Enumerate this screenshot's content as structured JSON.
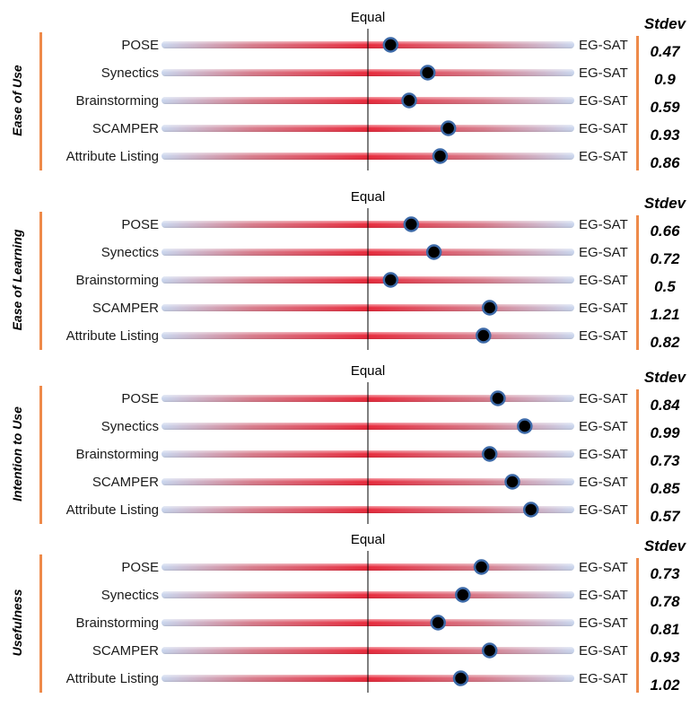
{
  "chart_data": {
    "type": "scatter",
    "scale_note": "position 0 = Equal line, 1 = EG-SAT end",
    "center_label": "Equal",
    "right_label": "EG-SAT",
    "stdev_header": "Stdev",
    "panels": [
      {
        "title": "Ease of Use",
        "rows": [
          {
            "label": "POSE",
            "value": 0.11,
            "stdev": "0.47"
          },
          {
            "label": "Synectics",
            "value": 0.29,
            "stdev": "0.9"
          },
          {
            "label": "Brainstorming",
            "value": 0.2,
            "stdev": "0.59"
          },
          {
            "label": "SCAMPER",
            "value": 0.39,
            "stdev": "0.93"
          },
          {
            "label": "Attribute Listing",
            "value": 0.35,
            "stdev": "0.86"
          }
        ]
      },
      {
        "title": "Ease of Learning",
        "rows": [
          {
            "label": "POSE",
            "value": 0.21,
            "stdev": "0.66"
          },
          {
            "label": "Synectics",
            "value": 0.32,
            "stdev": "0.72"
          },
          {
            "label": "Brainstorming",
            "value": 0.11,
            "stdev": "0.5"
          },
          {
            "label": "SCAMPER",
            "value": 0.59,
            "stdev": "1.21"
          },
          {
            "label": "Attribute Listing",
            "value": 0.56,
            "stdev": "0.82"
          }
        ]
      },
      {
        "title": "Intention to Use",
        "rows": [
          {
            "label": "POSE",
            "value": 0.63,
            "stdev": "0.84"
          },
          {
            "label": "Synectics",
            "value": 0.76,
            "stdev": "0.99"
          },
          {
            "label": "Brainstorming",
            "value": 0.59,
            "stdev": "0.73"
          },
          {
            "label": "SCAMPER",
            "value": 0.7,
            "stdev": "0.85"
          },
          {
            "label": "Attribute Listing",
            "value": 0.79,
            "stdev": "0.57"
          }
        ]
      },
      {
        "title": "Usefulness",
        "rows": [
          {
            "label": "POSE",
            "value": 0.55,
            "stdev": "0.73"
          },
          {
            "label": "Synectics",
            "value": 0.46,
            "stdev": "0.78"
          },
          {
            "label": "Brainstorming",
            "value": 0.34,
            "stdev": "0.81"
          },
          {
            "label": "SCAMPER",
            "value": 0.59,
            "stdev": "0.93"
          },
          {
            "label": "Attribute Listing",
            "value": 0.45,
            "stdev": "1.02"
          }
        ]
      }
    ],
    "colors": {
      "bar_center": "#e8283a",
      "bar_edge": "#c9d6ee",
      "marker_fill": "#000000",
      "marker_ring": "#3d6aa8",
      "bracket": "#ee8a4a"
    }
  }
}
